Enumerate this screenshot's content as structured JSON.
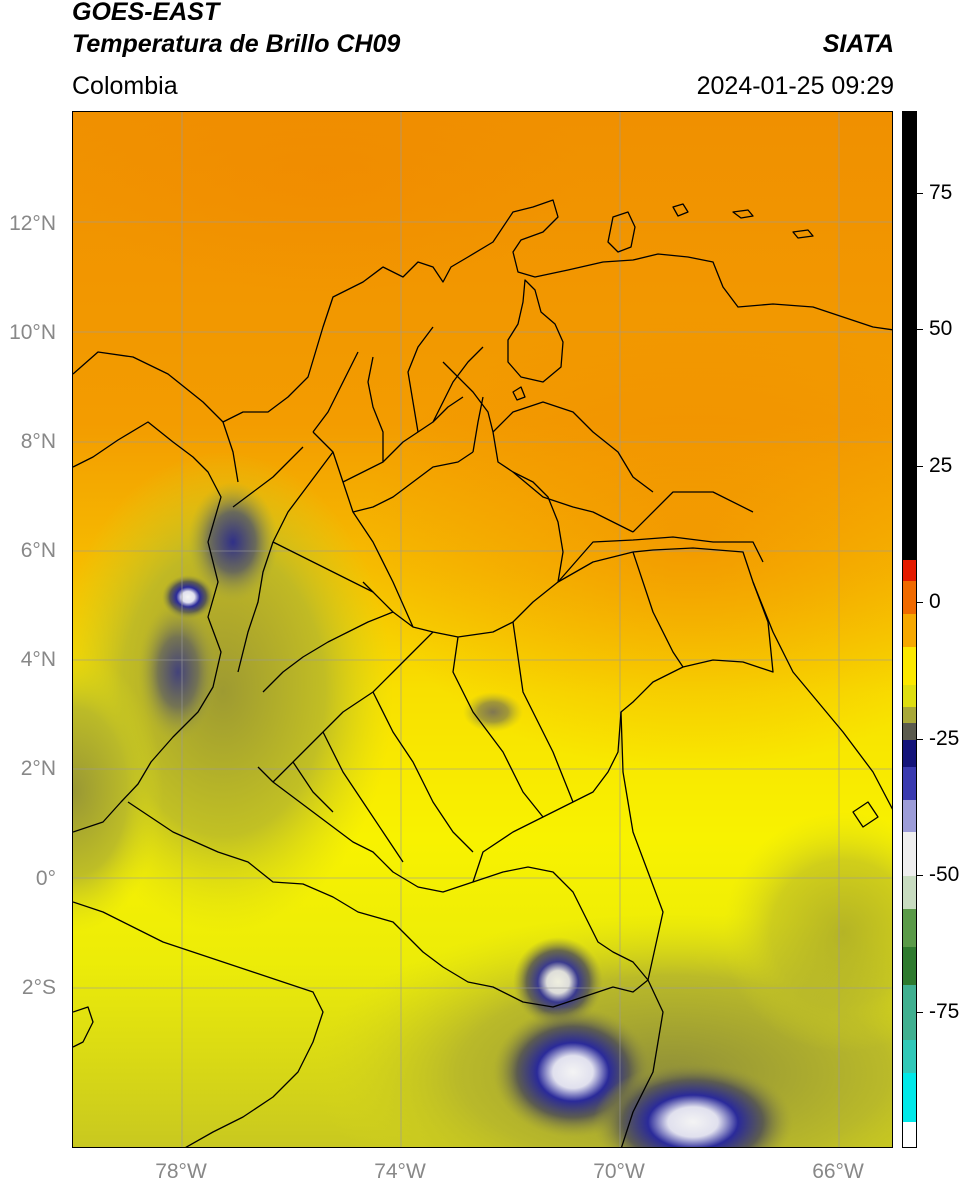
{
  "header": {
    "title_line1": "GOES-EAST",
    "title_line2": "Temperatura de Brillo CH09",
    "region": "Colombia",
    "brand": "SIATA",
    "timestamp": "2024-01-25 09:29"
  },
  "map": {
    "lon_range": [
      -80,
      -65
    ],
    "lat_range": [
      -5,
      14
    ],
    "lat_ticks": [
      {
        "value": 12,
        "label": "12°N"
      },
      {
        "value": 10,
        "label": "10°N"
      },
      {
        "value": 8,
        "label": "8°N"
      },
      {
        "value": 6,
        "label": "6°N"
      },
      {
        "value": 4,
        "label": "4°N"
      },
      {
        "value": 2,
        "label": "2°N"
      },
      {
        "value": 0,
        "label": "0°"
      },
      {
        "value": -2,
        "label": "2°S"
      }
    ],
    "lon_ticks": [
      {
        "value": -78,
        "label": "78°W"
      },
      {
        "value": -74,
        "label": "74°W"
      },
      {
        "value": -70,
        "label": "70°W"
      },
      {
        "value": -66,
        "label": "66°W"
      }
    ],
    "grid": true,
    "colors": {
      "warm_orange": "#f08a00",
      "mid_orange": "#f6b400",
      "yellow": "#f8f500",
      "olive": "#b5b42a",
      "navy": "#1c1c8c",
      "white_cloud": "#f0f0f0",
      "green": "#3f8a3f"
    }
  },
  "colorbar": {
    "range": [
      -100,
      90
    ],
    "ticks": [
      {
        "value": 75,
        "label": "75"
      },
      {
        "value": 50,
        "label": "50"
      },
      {
        "value": 25,
        "label": "25"
      },
      {
        "value": 0,
        "label": "0"
      },
      {
        "value": -25,
        "label": "-25"
      },
      {
        "value": -50,
        "label": "-50"
      },
      {
        "value": -75,
        "label": "-75"
      }
    ],
    "segments": [
      {
        "from": 8,
        "to": 90,
        "color": "#000000"
      },
      {
        "from": 4,
        "to": 8,
        "color": "#e41a00"
      },
      {
        "from": -2,
        "to": 4,
        "color": "#f06a00"
      },
      {
        "from": -8,
        "to": -2,
        "color": "#f6a800"
      },
      {
        "from": -15,
        "to": -8,
        "color": "#fbe800"
      },
      {
        "from": -19,
        "to": -15,
        "color": "#dede10"
      },
      {
        "from": -22,
        "to": -19,
        "color": "#a8a838"
      },
      {
        "from": -25,
        "to": -22,
        "color": "#5a5a4e"
      },
      {
        "from": -30,
        "to": -25,
        "color": "#14147a"
      },
      {
        "from": -36,
        "to": -30,
        "color": "#3a3ab0"
      },
      {
        "from": -42,
        "to": -36,
        "color": "#9c9cd8"
      },
      {
        "from": -50,
        "to": -42,
        "color": "#eeeeee"
      },
      {
        "from": -56,
        "to": -50,
        "color": "#c8dcc0"
      },
      {
        "from": -63,
        "to": -56,
        "color": "#5a9a48"
      },
      {
        "from": -70,
        "to": -63,
        "color": "#2e7a2e"
      },
      {
        "from": -80,
        "to": -70,
        "color": "#40b090"
      },
      {
        "from": -86,
        "to": -80,
        "color": "#30c8b8"
      },
      {
        "from": -95,
        "to": -86,
        "color": "#00e8e8"
      },
      {
        "from": -100,
        "to": -95,
        "color": "#ffffff"
      }
    ]
  }
}
